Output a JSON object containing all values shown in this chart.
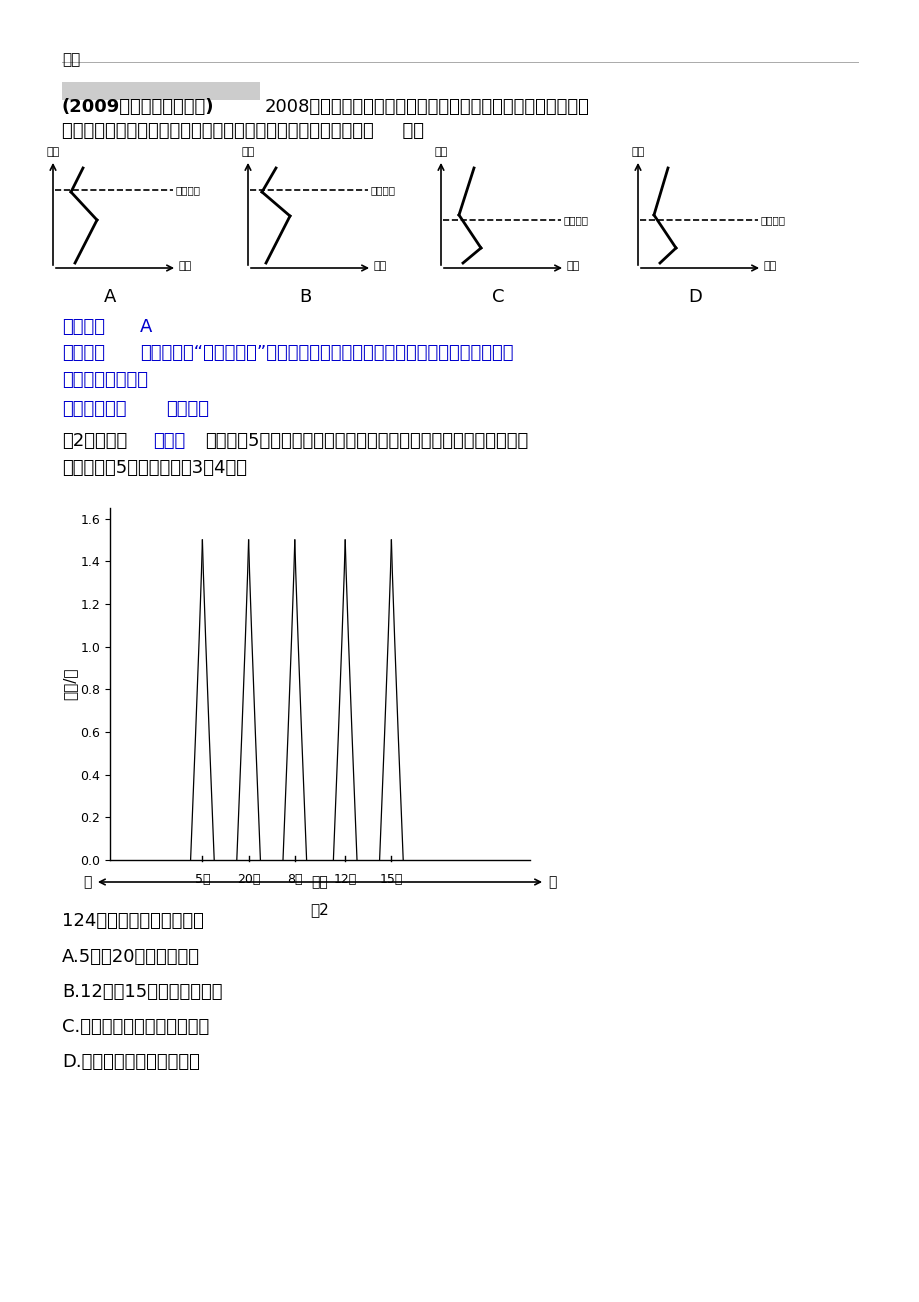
{
  "title": "逆温",
  "question_source": "(2009年高考上海综合卷)",
  "question_text": "2008年初的雪灾与大气的逆温现象有关。逆温是指对流层中气温",
  "question_text2": "随高度上升而增高的现象。下列四图中表示近地面逆温现象的是（     ）。",
  "answer_text": "【答案】A",
  "analysis_label": "【解析】",
  "analysis_text": "审题时注意“近地面逆温”而非整个对流层逆温。找出图中近地面气温随高度上",
  "analysis_text2": "升而增高的即可。",
  "kaopoint_label": "【考点定位】",
  "kaopoint_text": "逆温现象",
  "fig2_intro1": "图2为北半球",
  "fig2_intro_blue": "中纬度",
  "fig2_intro2": "某地某日5次观测到的近地面气温垂直分布示意图。当日天气晴朗，",
  "fig2_intro3": "日出时间为5时。读图回答3～4题。",
  "ylabel2": "高度/米",
  "xlabel2_left": "低",
  "xlabel2_mid": "气温",
  "xlabel2_right": "高",
  "fig2_caption": "图2",
  "q124": "124．由图中信息可分析出",
  "optA": "A.5时、20时大气较稳定",
  "optB": "B.12时、15时出现逆温现象",
  "optC": "C.大气热量直接来自太阳辐射",
  "optD": "D.气温日较差自下而上增大",
  "background_color": "#ffffff",
  "blue_color": "#0000cd",
  "black_color": "#000000",
  "curve_centers": [
    0.22,
    0.33,
    0.44,
    0.56,
    0.67
  ],
  "curve_labels": [
    "5时",
    "20时",
    "8时",
    "12时",
    "15时"
  ],
  "yticks": [
    0.0,
    0.2,
    0.4,
    0.6,
    0.8,
    1.0,
    1.2,
    1.4,
    1.6
  ]
}
